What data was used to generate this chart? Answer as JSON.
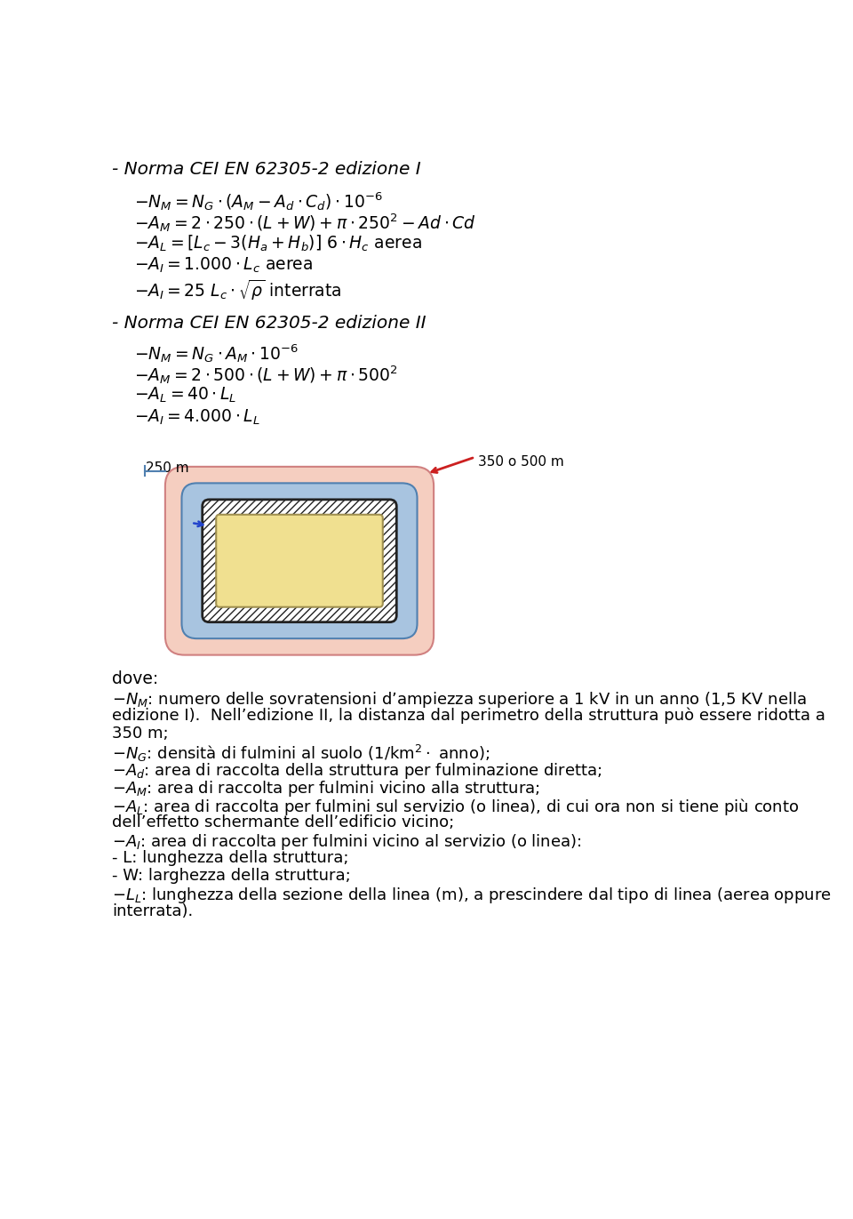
{
  "bg_color": "#ffffff",
  "text_color": "#000000",
  "title1": "- Norma CEI EN 62305-2 edizione I",
  "title2": "- Norma CEI EN 62305-2 edizione II",
  "fs": 13.5,
  "fs_title": 14.5,
  "fs_desc": 13.0,
  "section1": [
    "$- N_M = N_G \\cdot (A_M - A_d \\cdot C_d) \\cdot 10^{-6}$",
    "$- A_M = 2 \\cdot 250 \\cdot (L + W) + \\pi \\cdot 250^2 - Ad \\cdot Cd$",
    "$- A_L = [L_c - 3(H_a + H_b)]\\ 6 \\cdot H_c\\ \\mathrm{aerea}$",
    "$- A_I = 1.000 \\cdot L_c\\ \\mathrm{aerea}$",
    "$- A_I = 25\\ L_c \\cdot \\sqrt{\\rho}\\ \\mathrm{interrata}$"
  ],
  "section2": [
    "$- N_M = N_G \\cdot A_M \\cdot 10^{-6}$",
    "$- A_M = 2 \\cdot 500 \\cdot (L + W) + \\pi \\cdot 500^2$",
    "$- A_L = 40 \\cdot L_L$",
    "$- A_I = 4.000 \\cdot L_L$"
  ],
  "desc_lines": [
    [
      "$- N_M$: numero delle sovratensioni d’ampiezza superiore a 1 kV in un anno (1,5 KV nella",
      false
    ],
    [
      "edizione I).  Nell’edizione II, la distanza dal perimetro della struttura può essere ridotta a",
      false
    ],
    [
      "350 m;",
      false
    ],
    [
      "$- N_G$: densità di fulmini al suolo (1/km$^2 \\cdot$ anno);",
      false
    ],
    [
      "$- A_d$: area di raccolta della struttura per fulminazione diretta;",
      false
    ],
    [
      "$- A_M$: area di raccolta per fulmini vicino alla struttura;",
      false
    ],
    [
      "$- A_L$: area di raccolta per fulmini sul servizio (o linea), di cui ora non si tiene più conto",
      false
    ],
    [
      "dell’effetto schermante dell’edificio vicino;",
      false
    ],
    [
      "$- A_I$: area di raccolta per fulmini vicino al servizio (o linea):",
      false
    ],
    [
      "- L: lunghezza della struttura;",
      false
    ],
    [
      "- W: larghezza della struttura;",
      false
    ],
    [
      "$- L_L$: lunghezza della sezione della linea (m), a prescindere dal tipo di linea (aerea oppure",
      false
    ],
    [
      "interrata).",
      false
    ]
  ],
  "pink_color": "#f5cec0",
  "pink_edge": "#d08080",
  "blue_color": "#a8c4e0",
  "blue_edge": "#5080b0",
  "yellow_color": "#f0e090",
  "yellow_edge": "#a09050",
  "hatch_color": "#222222",
  "arrow_red": "#cc2020",
  "arrow_blue": "#2244cc",
  "line_blue": "#5080b0"
}
